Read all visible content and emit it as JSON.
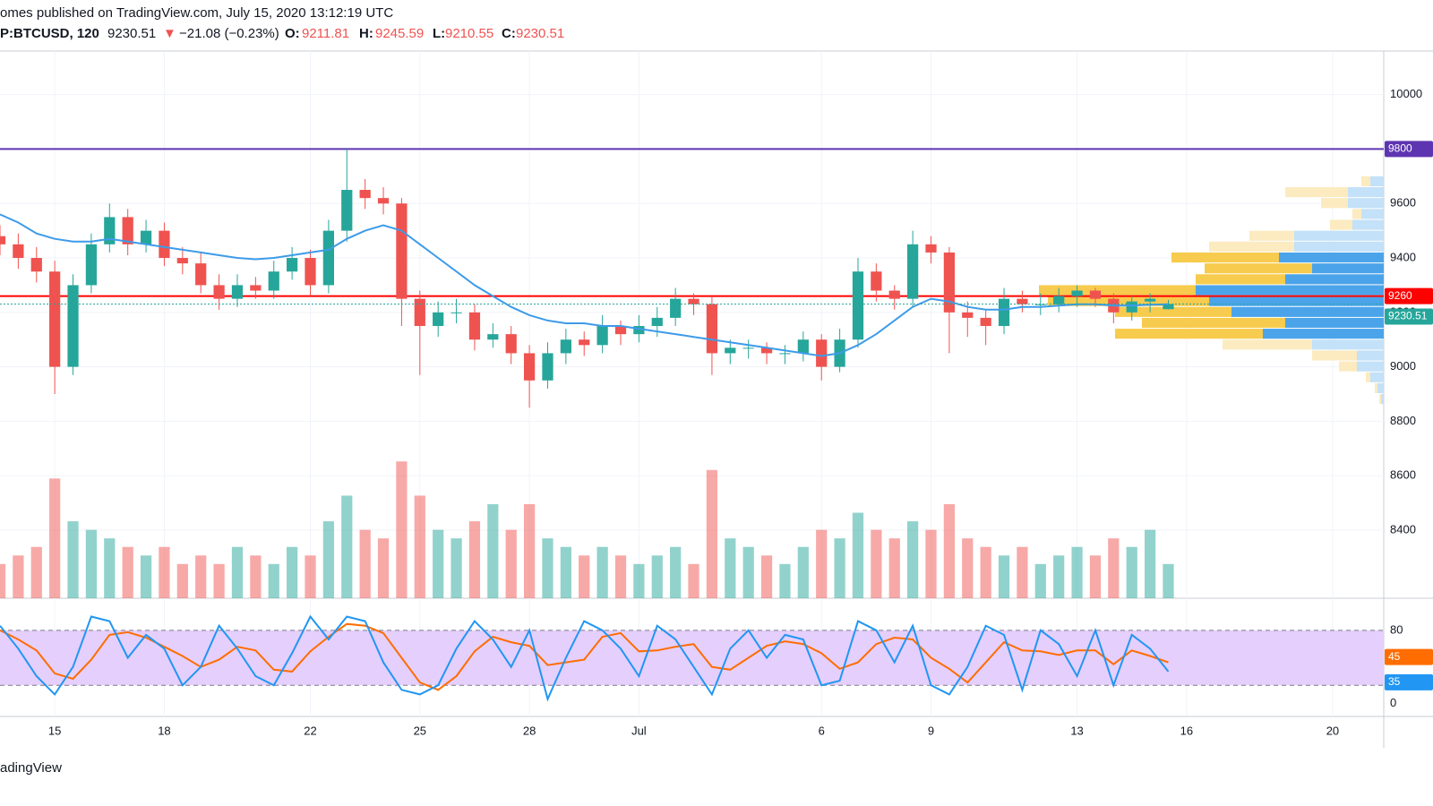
{
  "header": {
    "publisher": "omes published on TradingView.com, July 15, 2020 13:12:19 UTC",
    "symbol": "P:BTCUSD, 120",
    "arrow": "▼",
    "change": "−21.08 (−0.23%)",
    "o": "O:",
    "h": "H:",
    "l": "L:",
    "c": "C:"
  },
  "footer": "adingView",
  "chart_data": {
    "type": "candlestick",
    "x": [
      13.5,
      14,
      14.5,
      15,
      15.5,
      16,
      16.5,
      17,
      17.5,
      18,
      18.5,
      19,
      19.5,
      20,
      20.5,
      21,
      21.5,
      22,
      22.5,
      23,
      23.5,
      24,
      24.5,
      25,
      25.5,
      26,
      26.5,
      27,
      27.5,
      28,
      28.5,
      29,
      29.5,
      30,
      30.5,
      31,
      31.5,
      32,
      32.5,
      33,
      33.5,
      34,
      34.5,
      35,
      35.5,
      36,
      36.5,
      37,
      37.5,
      38,
      38.5,
      39,
      39.5,
      40,
      40.5,
      41,
      41.5,
      42,
      42.5,
      43,
      43.5,
      44,
      44.5,
      45,
      45.5
    ],
    "open": [
      9480,
      9450,
      9400,
      9350,
      9000,
      9300,
      9450,
      9550,
      9450,
      9500,
      9400,
      9380,
      9300,
      9250,
      9300,
      9280,
      9350,
      9400,
      9300,
      9500,
      9650,
      9620,
      9600,
      9250,
      9150,
      9200,
      9200,
      9100,
      9120,
      9050,
      8950,
      9050,
      9100,
      9080,
      9150,
      9120,
      9150,
      9180,
      9250,
      9230,
      9050,
      9070,
      9070,
      9050,
      9050,
      9100,
      9000,
      9100,
      9350,
      9280,
      9250,
      9450,
      9420,
      9200,
      9180,
      9150,
      9250,
      9230,
      9230,
      9260,
      9280,
      9250,
      9200,
      9240,
      9211.81
    ],
    "high": [
      9520,
      9490,
      9440,
      9390,
      9340,
      9490,
      9600,
      9580,
      9540,
      9530,
      9440,
      9420,
      9340,
      9340,
      9330,
      9390,
      9440,
      9430,
      9540,
      9800,
      9690,
      9660,
      9620,
      9280,
      9240,
      9250,
      9230,
      9160,
      9150,
      9080,
      9090,
      9140,
      9130,
      9190,
      9170,
      9190,
      9220,
      9290,
      9270,
      9260,
      9100,
      9100,
      9090,
      9080,
      9130,
      9120,
      9140,
      9400,
      9380,
      9300,
      9500,
      9480,
      9440,
      9240,
      9210,
      9290,
      9280,
      9270,
      9290,
      9300,
      9290,
      9270,
      9260,
      9270,
      9245.59
    ],
    "low": [
      9410,
      9360,
      9310,
      8900,
      8970,
      9270,
      9420,
      9410,
      9420,
      9370,
      9340,
      9270,
      9210,
      9220,
      9250,
      9250,
      9320,
      9260,
      9270,
      9460,
      9580,
      9560,
      9150,
      8970,
      9110,
      9160,
      9060,
      9070,
      9010,
      8850,
      8920,
      9010,
      9040,
      9050,
      9080,
      9090,
      9110,
      9150,
      9190,
      8970,
      9010,
      9030,
      9010,
      9010,
      9020,
      8950,
      8980,
      9070,
      9240,
      9210,
      9220,
      9380,
      9050,
      9110,
      9080,
      9120,
      9200,
      9190,
      9200,
      9220,
      9220,
      9160,
      9170,
      9200,
      9210.55
    ],
    "close": [
      9450,
      9400,
      9350,
      9000,
      9300,
      9450,
      9550,
      9450,
      9500,
      9400,
      9380,
      9300,
      9250,
      9300,
      9280,
      9350,
      9400,
      9300,
      9500,
      9650,
      9620,
      9600,
      9250,
      9150,
      9200,
      9200,
      9100,
      9120,
      9050,
      8950,
      9050,
      9100,
      9080,
      9150,
      9120,
      9150,
      9180,
      9250,
      9230,
      9050,
      9070,
      9070,
      9050,
      9050,
      9100,
      9000,
      9100,
      9350,
      9280,
      9250,
      9450,
      9420,
      9200,
      9180,
      9150,
      9250,
      9230,
      9230,
      9260,
      9280,
      9250,
      9200,
      9240,
      9250,
      9230.51
    ],
    "up_color": "#26a69a",
    "down_color": "#ef5350",
    "xlim": [
      13.5,
      51.4
    ],
    "xticks": [
      15,
      18,
      22,
      25,
      28,
      {
        "value": 31,
        "label": "Jul"
      },
      {
        "value": 36,
        "label": "6"
      },
      {
        "value": 39,
        "label": "9"
      },
      {
        "value": 43,
        "label": "13"
      },
      {
        "value": 46,
        "label": "16"
      },
      {
        "value": 50,
        "label": "20"
      }
    ],
    "ylim": [
      8150,
      10160
    ],
    "yticks": [
      8400,
      8600,
      8800,
      9000,
      9200,
      9400,
      9600,
      9800,
      10000
    ],
    "grid": true,
    "ma": {
      "color": "#3d9be9",
      "values": [
        9560,
        9530,
        9490,
        9470,
        9460,
        9460,
        9470,
        9460,
        9450,
        9440,
        9430,
        9420,
        9410,
        9400,
        9395,
        9400,
        9410,
        9420,
        9430,
        9470,
        9500,
        9520,
        9500,
        9450,
        9400,
        9350,
        9300,
        9260,
        9220,
        9190,
        9170,
        9160,
        9160,
        9150,
        9150,
        9140,
        9130,
        9120,
        9110,
        9100,
        9090,
        9080,
        9070,
        9060,
        9050,
        9040,
        9050,
        9080,
        9120,
        9170,
        9220,
        9250,
        9240,
        9220,
        9210,
        9210,
        9220,
        9220,
        9225,
        9230,
        9230,
        9225,
        9225,
        9228,
        9230
      ]
    },
    "hlines": [
      {
        "value": 9800,
        "color": "#5e35b1"
      },
      {
        "value": 9260,
        "color": "#ff0000"
      }
    ],
    "last_color": "#26a69a",
    "volume": {
      "ylim": [
        0,
        320
      ],
      "values": [
        20,
        25,
        30,
        70,
        45,
        40,
        35,
        30,
        25,
        30,
        20,
        25,
        20,
        30,
        25,
        20,
        30,
        25,
        45,
        60,
        40,
        35,
        80,
        60,
        40,
        35,
        45,
        55,
        40,
        55,
        35,
        30,
        25,
        30,
        25,
        20,
        25,
        30,
        20,
        75,
        35,
        30,
        25,
        20,
        30,
        40,
        35,
        50,
        40,
        35,
        45,
        40,
        55,
        35,
        30,
        25,
        30,
        20,
        25,
        30,
        25,
        35,
        30,
        40,
        20
      ]
    },
    "profile": {
      "bin": 40,
      "value_area": [
        9100,
        9420
      ],
      "prices": [
        9680,
        9640,
        9600,
        9560,
        9520,
        9480,
        9440,
        9400,
        9360,
        9320,
        9280,
        9240,
        9200,
        9160,
        9120,
        9080,
        9040,
        9000,
        8960,
        8920,
        8880
      ],
      "up": [
        10,
        70,
        30,
        10,
        25,
        50,
        95,
        120,
        120,
        100,
        175,
        180,
        130,
        160,
        165,
        100,
        50,
        20,
        5,
        3,
        2
      ],
      "down": [
        15,
        40,
        40,
        25,
        35,
        100,
        100,
        117,
        80,
        110,
        210,
        195,
        170,
        110,
        135,
        80,
        30,
        30,
        15,
        7,
        3
      ],
      "up_color": "#f7cb4d",
      "down_color": "#4ba4ea",
      "up_pale": "#fcebc0",
      "down_pale": "#c3e1f8"
    },
    "stoch": {
      "k_color": "#2196f3",
      "d_color": "#ff6d00",
      "band_color": "#e5cffc",
      "ylim": [
        -14,
        115
      ],
      "yticks": [
        0,
        80
      ],
      "band": [
        20,
        80
      ],
      "k": [
        85,
        60,
        30,
        10,
        40,
        95,
        90,
        50,
        75,
        60,
        20,
        40,
        85,
        60,
        30,
        20,
        55,
        95,
        70,
        95,
        90,
        45,
        15,
        10,
        20,
        60,
        90,
        70,
        40,
        80,
        5,
        50,
        90,
        80,
        60,
        30,
        85,
        70,
        40,
        10,
        60,
        80,
        50,
        75,
        70,
        20,
        25,
        90,
        80,
        45,
        85,
        20,
        10,
        40,
        85,
        75,
        15,
        80,
        65,
        30,
        80,
        20,
        75,
        60,
        35
      ],
      "d": [
        80,
        70,
        58,
        33,
        27,
        48,
        75,
        78,
        72,
        62,
        52,
        40,
        48,
        62,
        58,
        37,
        35,
        57,
        73,
        87,
        85,
        77,
        50,
        23,
        15,
        30,
        57,
        73,
        67,
        63,
        42,
        45,
        48,
        73,
        77,
        57,
        58,
        62,
        65,
        40,
        37,
        50,
        63,
        68,
        65,
        55,
        38,
        45,
        65,
        72,
        70,
        50,
        38,
        23,
        45,
        67,
        58,
        57,
        53,
        58,
        58,
        43,
        58,
        52,
        45
      ]
    }
  }
}
